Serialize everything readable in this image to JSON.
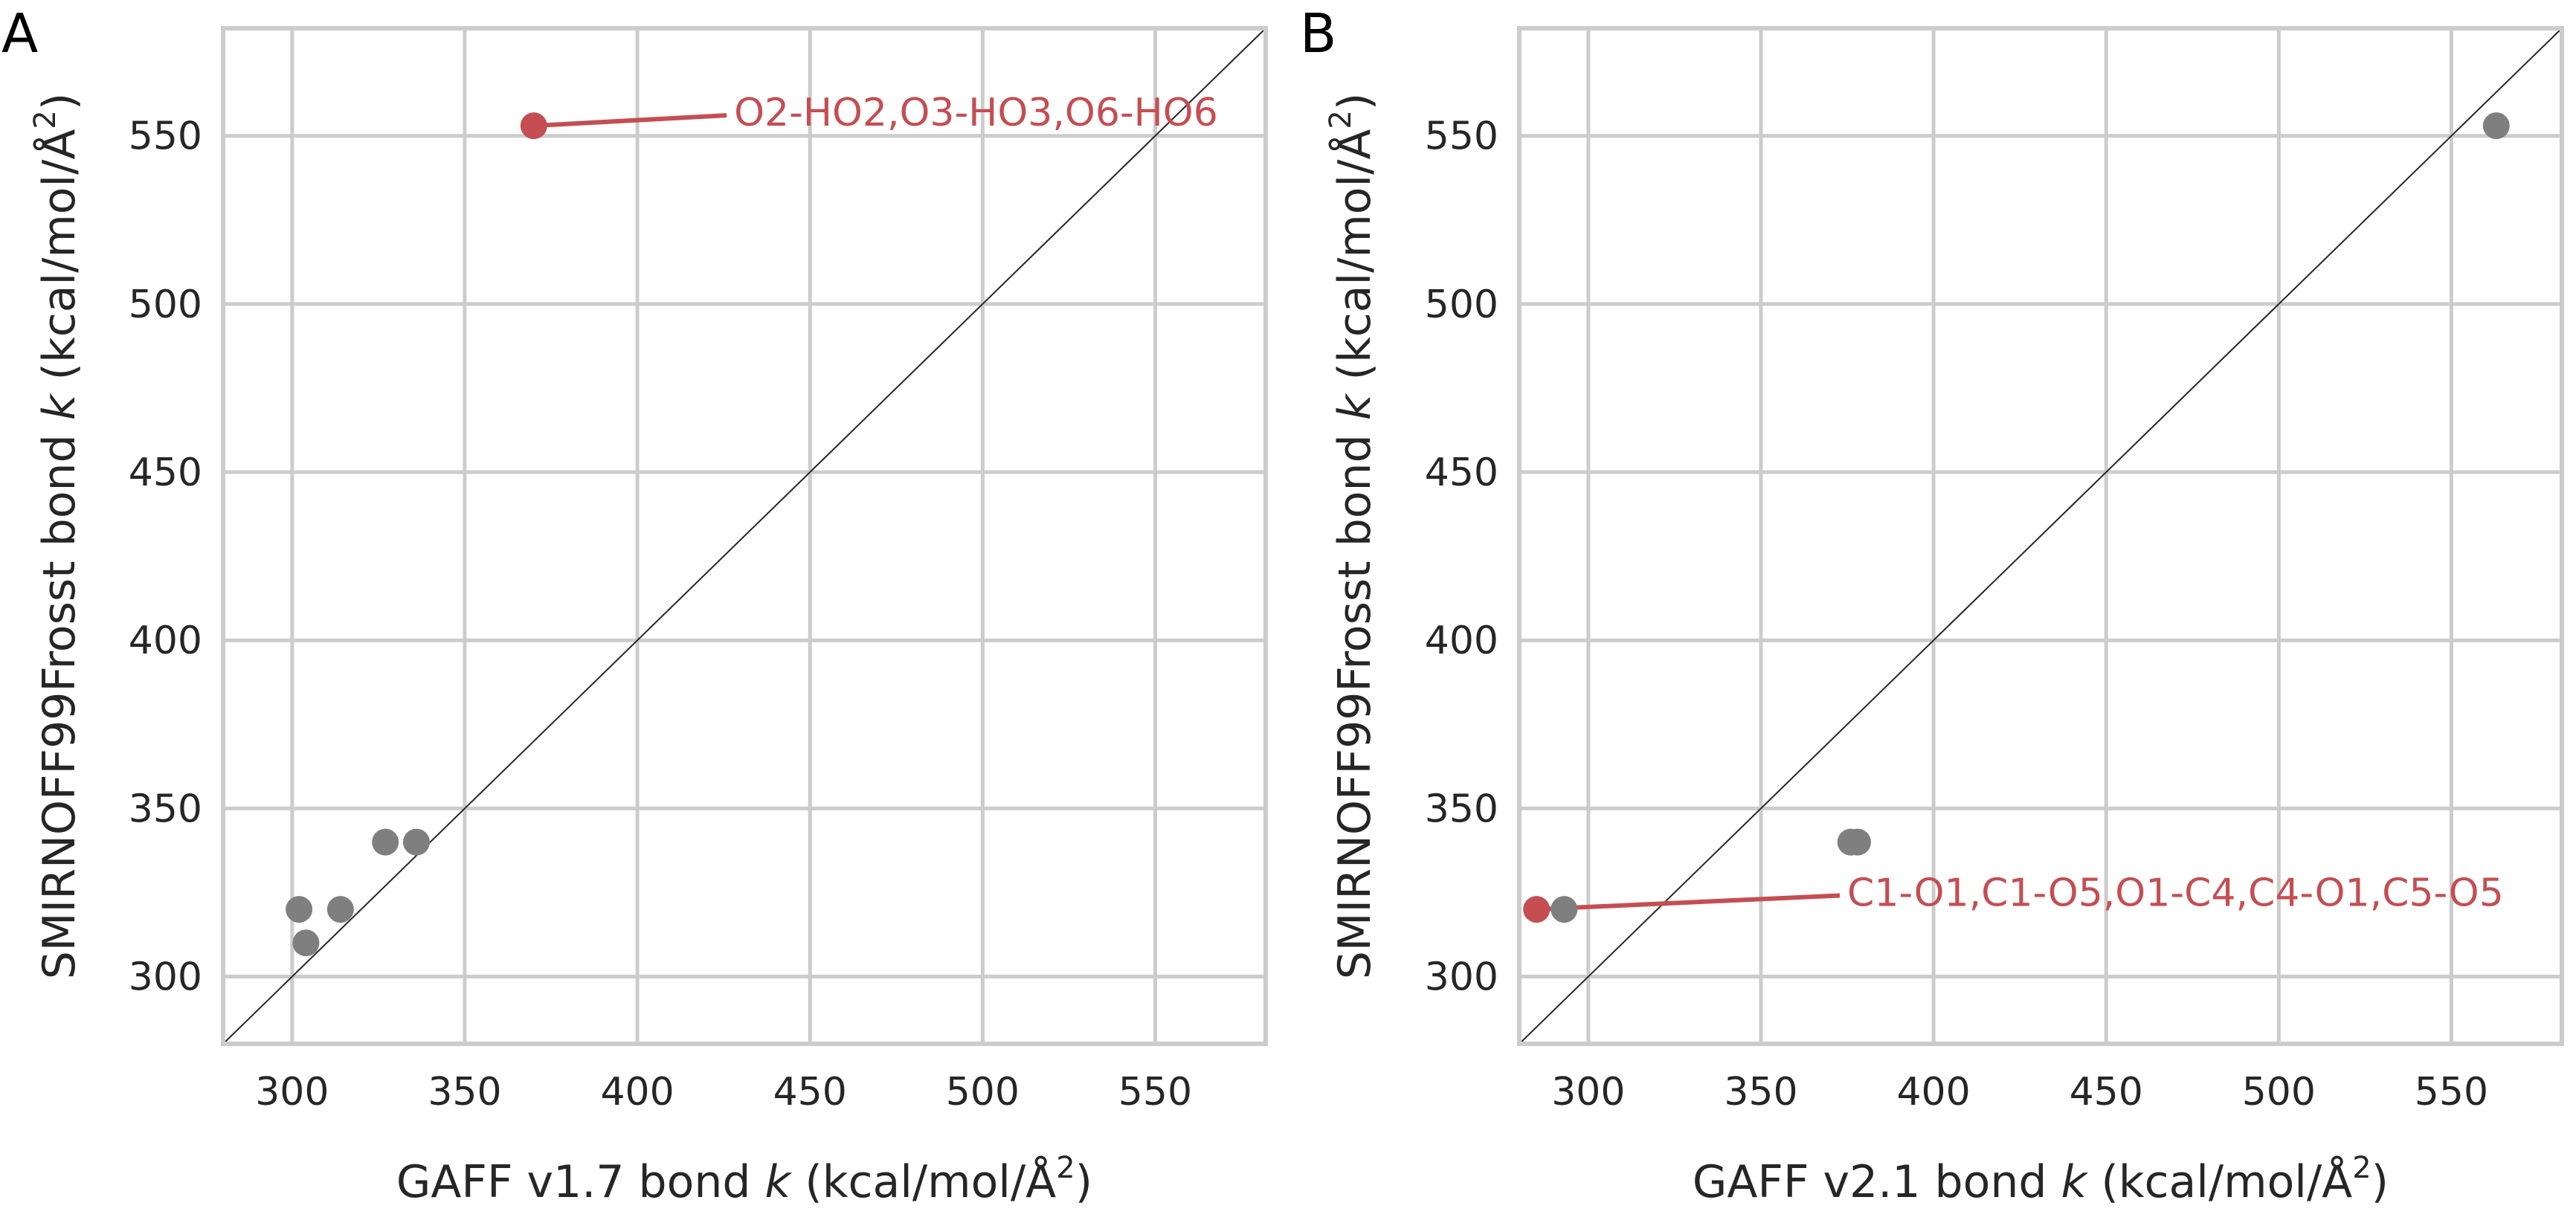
{
  "colors": {
    "grid": "#cccccc",
    "point": "#7f7f7f",
    "highlight": "#c44e52",
    "text": "#262626",
    "diagonal": "#262626"
  },
  "chart_data": [
    {
      "type": "scatter",
      "panel_label": "A",
      "xlabel_pre": "GAFF v1.7 bond ",
      "xlabel_k": "k",
      "xlabel_unit": " (kcal/mol/Å",
      "xlabel_sup": "2",
      "xlabel_close": ")",
      "ylabel_pre": "SMIRNOFF99Frosst bond ",
      "ylabel_k": "k",
      "ylabel_unit": " (kcal/mol/Å",
      "ylabel_sup": "2",
      "ylabel_close": ")",
      "xlim": [
        280,
        582
      ],
      "ylim": [
        280,
        582
      ],
      "xticks": [
        "300",
        "350",
        "400",
        "450",
        "500",
        "550"
      ],
      "yticks": [
        "300",
        "350",
        "400",
        "450",
        "500",
        "550"
      ],
      "grid": true,
      "diagonal": true,
      "points": [
        {
          "x": 302,
          "y": 320
        },
        {
          "x": 304,
          "y": 310
        },
        {
          "x": 314,
          "y": 320
        },
        {
          "x": 327,
          "y": 340
        },
        {
          "x": 336,
          "y": 340
        },
        {
          "x": 370,
          "y": 553,
          "highlight": true
        }
      ],
      "annotation": {
        "text": "O2-HO2,O3-HO3,O6-HO6",
        "x": 370,
        "y": 553,
        "text_x": 428,
        "text_y": 557
      }
    },
    {
      "type": "scatter",
      "panel_label": "B",
      "xlabel_pre": "GAFF v2.1 bond ",
      "xlabel_k": "k",
      "xlabel_unit": " (kcal/mol/Å",
      "xlabel_sup": "2",
      "xlabel_close": ")",
      "ylabel_pre": "SMIRNOFF99Frosst bond ",
      "ylabel_k": "k",
      "ylabel_unit": " (kcal/mol/Å",
      "ylabel_sup": "2",
      "ylabel_close": ")",
      "xlim": [
        280,
        582
      ],
      "ylim": [
        280,
        582
      ],
      "xticks": [
        "300",
        "350",
        "400",
        "450",
        "500",
        "550"
      ],
      "yticks": [
        "300",
        "350",
        "400",
        "450",
        "500",
        "550"
      ],
      "grid": true,
      "diagonal": true,
      "points": [
        {
          "x": 293,
          "y": 320
        },
        {
          "x": 376,
          "y": 340
        },
        {
          "x": 378,
          "y": 340
        },
        {
          "x": 563,
          "y": 553
        },
        {
          "x": 285,
          "y": 320,
          "highlight": true
        }
      ],
      "annotation": {
        "text": "C1-O1,C1-O5,O1-C4,C4-O1,C5-O5",
        "x": 285,
        "y": 320,
        "text_x": 375,
        "text_y": 325
      }
    }
  ]
}
